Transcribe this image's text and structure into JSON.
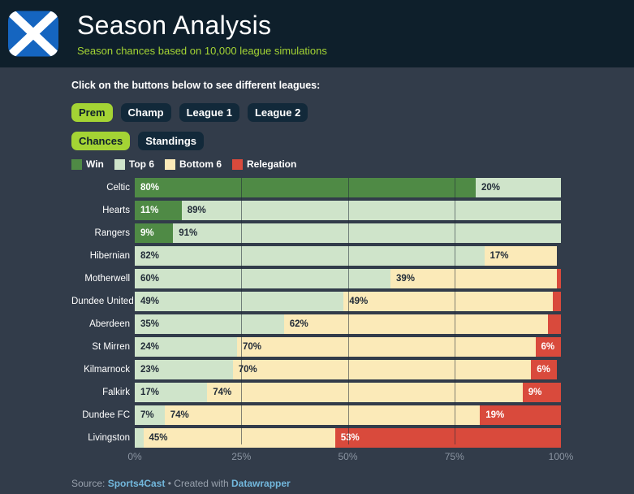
{
  "header": {
    "title": "Season Analysis",
    "subtitle": "Season chances based on 10,000 league simulations"
  },
  "intro": "Click on the buttons below to see different leagues:",
  "league_buttons": [
    {
      "label": "Prem",
      "active": true
    },
    {
      "label": "Champ",
      "active": false
    },
    {
      "label": "League 1",
      "active": false
    },
    {
      "label": "League 2",
      "active": false
    }
  ],
  "view_buttons": [
    {
      "label": "Chances",
      "active": true
    },
    {
      "label": "Standings",
      "active": false
    }
  ],
  "colors": {
    "header_bg": "#0e1f2b",
    "page_bg": "#323c4a",
    "accent_lime": "#a4d434",
    "button_inactive_bg": "#12293a",
    "flag_blue": "#1565c0"
  },
  "chart_data": {
    "type": "bar",
    "stacked": true,
    "horizontal": true,
    "unit": "%",
    "title": "Season Analysis",
    "subtitle": "Season chances based on 10,000 league simulations",
    "categories": [
      "Celtic",
      "Hearts",
      "Rangers",
      "Hibernian",
      "Motherwell",
      "Dundee United",
      "Aberdeen",
      "St Mirren",
      "Kilmarnock",
      "Falkirk",
      "Dundee FC",
      "Livingston"
    ],
    "series": [
      {
        "name": "Win",
        "color": "#4f8a45",
        "label_color": "#ffffff",
        "values": [
          80,
          11,
          9,
          0,
          0,
          0,
          0,
          0,
          0,
          0,
          0,
          0
        ]
      },
      {
        "name": "Top 6",
        "color": "#cfe4ca",
        "label_color": "#222c38",
        "values": [
          20,
          89,
          91,
          82,
          60,
          49,
          35,
          24,
          23,
          17,
          7,
          2
        ]
      },
      {
        "name": "Bottom 6",
        "color": "#fbeab8",
        "label_color": "#222c38",
        "values": [
          0,
          0,
          0,
          17,
          39,
          49,
          62,
          70,
          70,
          74,
          74,
          45
        ]
      },
      {
        "name": "Relegation",
        "color": "#d94a3c",
        "label_color": "#ffffff",
        "values": [
          0,
          0,
          0,
          0,
          1,
          2,
          3,
          6,
          6,
          9,
          19,
          53
        ]
      }
    ],
    "label_min_value": 6,
    "x_ticks": [
      {
        "value": 0,
        "label": "0%"
      },
      {
        "value": 25,
        "label": "25%"
      },
      {
        "value": 50,
        "label": "50%"
      },
      {
        "value": 75,
        "label": "75%"
      },
      {
        "value": 100,
        "label": "100%"
      }
    ],
    "gridlines_at": [
      25,
      50,
      75
    ],
    "xlim": [
      0,
      100
    ],
    "legend_position": "top-left",
    "legend_entries": [
      "Win",
      "Top 6",
      "Bottom 6",
      "Relegation"
    ]
  },
  "footer": {
    "source_label": "Source:",
    "source_link": "Sports4Cast",
    "separator": "•",
    "created_label": "Created with",
    "tool_link": "Datawrapper"
  }
}
